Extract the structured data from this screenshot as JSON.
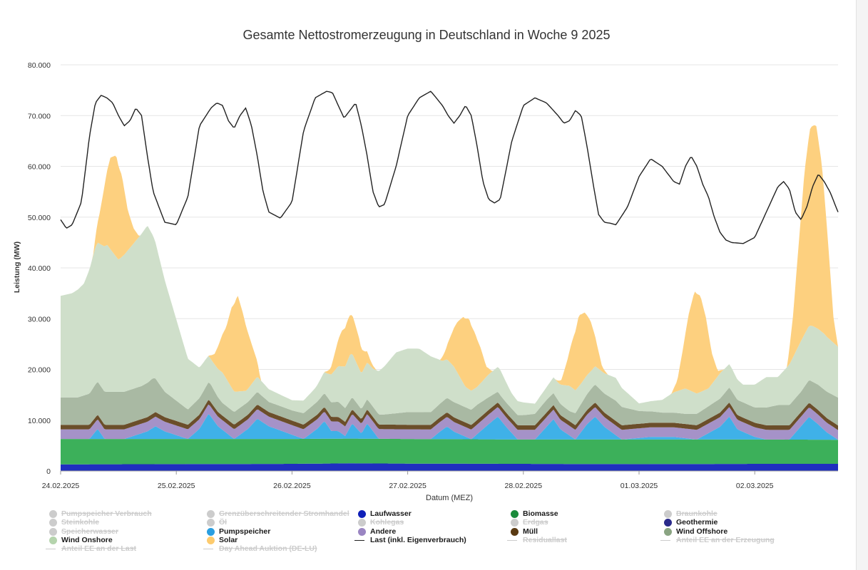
{
  "chart_data": {
    "type": "area",
    "title": "Gesamte Nettostromerzeugung in Deutschland in Woche 9 2025",
    "xlabel": "Datum (MEZ)",
    "ylabel": "Leistung (MW)",
    "ylim": [
      0,
      80000
    ],
    "yticks": [
      0,
      10000,
      20000,
      30000,
      40000,
      50000,
      60000,
      70000,
      80000
    ],
    "ytick_labels": [
      "0",
      "10.000",
      "20.000",
      "30.000",
      "40.000",
      "50.000",
      "60.000",
      "70.000",
      "80.000"
    ],
    "xlim_days": [
      0,
      6.72
    ],
    "xtick_labels": [
      "24.02.2025",
      "25.02.2025",
      "26.02.2025",
      "27.02.2025",
      "28.02.2025",
      "01.03.2025",
      "02.03.2025"
    ],
    "grid": true,
    "legend_position": "bottom",
    "series_order": [
      "Laufwasser",
      "Biomasse",
      "Pumpspeicher",
      "Andere",
      "Müll",
      "Wind Offshore",
      "Wind Onshore",
      "Solar"
    ],
    "series": [
      {
        "name": "Laufwasser",
        "color": "#1f2fbf",
        "type": "area",
        "x": [
          0,
          1,
          2,
          2.5,
          3,
          4,
          5,
          6,
          6.72
        ],
        "y": [
          1300,
          1350,
          1400,
          1500,
          1450,
          1400,
          1350,
          1400,
          1400
        ]
      },
      {
        "name": "Biomasse",
        "color": "#3cb05a",
        "type": "area",
        "x": [
          0,
          1,
          2,
          3,
          4,
          5,
          6,
          6.72
        ],
        "y": [
          5000,
          4950,
          4900,
          4850,
          4800,
          4850,
          4800,
          4750
        ]
      },
      {
        "name": "Pumpspeicher",
        "color": "#3fb1e8",
        "type": "area",
        "x": [
          0,
          0.25,
          0.32,
          0.38,
          0.55,
          0.75,
          0.82,
          0.9,
          1.1,
          1.2,
          1.28,
          1.36,
          1.5,
          1.62,
          1.7,
          1.8,
          2.1,
          2.22,
          2.28,
          2.34,
          2.4,
          2.46,
          2.52,
          2.6,
          2.65,
          2.75,
          3.2,
          3.28,
          3.34,
          3.4,
          3.55,
          3.7,
          3.78,
          3.85,
          3.95,
          4.1,
          4.2,
          4.26,
          4.32,
          4.45,
          4.55,
          4.62,
          4.7,
          4.85,
          5.1,
          5.3,
          5.5,
          5.7,
          5.78,
          5.85,
          6.0,
          6.1,
          6.3,
          6.47,
          6.55,
          6.62,
          6.72
        ],
        "y": [
          0,
          0,
          2000,
          0,
          0,
          1500,
          2500,
          1500,
          0,
          2000,
          5000,
          2500,
          0,
          2000,
          4000,
          2500,
          0,
          2000,
          3500,
          1500,
          1500,
          500,
          3000,
          1000,
          3000,
          0,
          0,
          1500,
          2500,
          1500,
          0,
          3000,
          4500,
          2500,
          0,
          0,
          2500,
          4000,
          2000,
          0,
          3000,
          4500,
          2500,
          0,
          500,
          500,
          0,
          2500,
          4500,
          2000,
          500,
          0,
          0,
          4500,
          3000,
          1500,
          0
        ]
      },
      {
        "name": "Andere",
        "color": "#a592c8",
        "type": "area",
        "x": [
          0,
          1,
          2,
          3,
          4,
          5,
          6,
          6.72
        ],
        "y": [
          1900,
          1900,
          1900,
          1900,
          1900,
          1900,
          1900,
          1900
        ]
      },
      {
        "name": "Müll",
        "color": "#6b4e2a",
        "type": "area",
        "x": [
          0,
          1,
          2,
          3,
          4,
          5,
          6,
          6.72
        ],
        "y": [
          900,
          900,
          900,
          900,
          900,
          900,
          900,
          900
        ]
      },
      {
        "name": "Wind Offshore",
        "color": "#a9b9a3",
        "type": "area",
        "x": [
          0,
          0.15,
          0.3,
          0.5,
          0.7,
          0.8,
          0.9,
          1.0,
          1.1,
          1.3,
          1.4,
          1.5,
          1.7,
          1.8,
          2.0,
          2.2,
          2.4,
          2.6,
          2.8,
          3.0,
          3.2,
          3.4,
          3.6,
          3.8,
          4.0,
          4.2,
          4.4,
          4.6,
          4.8,
          5.0,
          5.2,
          5.4,
          5.6,
          5.8,
          6.0,
          6.2,
          6.4,
          6.55,
          6.72
        ],
        "y": [
          5400,
          5400,
          6500,
          6500,
          6500,
          7000,
          5000,
          4000,
          3000,
          3500,
          2500,
          2500,
          2500,
          2000,
          2000,
          2500,
          3000,
          2000,
          2000,
          2500,
          2500,
          3000,
          3000,
          2000,
          2000,
          2500,
          2000,
          3500,
          4000,
          2500,
          2000,
          2000,
          2500,
          3000,
          3000,
          4000,
          4000,
          5000,
          5500
        ]
      },
      {
        "name": "Wind Onshore",
        "color": "#cfdfca",
        "type": "area",
        "x": [
          0,
          0.1,
          0.2,
          0.3,
          0.4,
          0.5,
          0.6,
          0.75,
          0.85,
          1.0,
          1.1,
          1.2,
          1.3,
          1.4,
          1.5,
          1.6,
          1.7,
          1.8,
          2.0,
          2.2,
          2.3,
          2.4,
          2.5,
          2.6,
          2.7,
          2.8,
          2.9,
          3.0,
          3.1,
          3.2,
          3.3,
          3.4,
          3.5,
          3.6,
          3.7,
          3.8,
          3.9,
          4.0,
          4.1,
          4.2,
          4.3,
          4.4,
          4.5,
          4.6,
          4.7,
          4.8,
          4.9,
          5.0,
          5.1,
          5.2,
          5.3,
          5.4,
          5.5,
          5.6,
          5.7,
          5.8,
          5.9,
          6.0,
          6.1,
          6.2,
          6.3,
          6.4,
          6.5,
          6.6,
          6.72
        ],
        "y": [
          20000,
          20500,
          22000,
          27000,
          29000,
          26000,
          28000,
          31000,
          25000,
          16000,
          10000,
          6000,
          5000,
          6000,
          4000,
          2500,
          3000,
          2500,
          2000,
          3000,
          4500,
          7000,
          9000,
          7000,
          7500,
          9500,
          12000,
          12500,
          12500,
          11000,
          8000,
          7000,
          4000,
          3500,
          4500,
          5000,
          3000,
          2500,
          2000,
          2500,
          3500,
          5000,
          4000,
          3500,
          4000,
          4500,
          3000,
          1500,
          2000,
          2500,
          4000,
          5000,
          4000,
          3500,
          5000,
          4500,
          3500,
          4500,
          6000,
          5500,
          8000,
          10000,
          11000,
          11000,
          10000
        ]
      },
      {
        "name": "Solar",
        "color": "#fdd07f",
        "type": "area",
        "x": [
          0,
          0.28,
          0.33,
          0.38,
          0.43,
          0.48,
          0.53,
          0.58,
          0.63,
          0.68,
          0.73,
          1.28,
          1.33,
          1.38,
          1.43,
          1.48,
          1.53,
          1.58,
          1.63,
          1.68,
          1.73,
          2.28,
          2.33,
          2.38,
          2.43,
          2.48,
          2.53,
          2.58,
          2.63,
          2.68,
          2.73,
          3.28,
          3.33,
          3.38,
          3.43,
          3.48,
          3.53,
          3.58,
          3.63,
          3.68,
          3.73,
          4.28,
          4.33,
          4.38,
          4.43,
          4.48,
          4.53,
          4.58,
          4.63,
          4.68,
          4.73,
          5.28,
          5.33,
          5.38,
          5.43,
          5.48,
          5.53,
          5.58,
          5.63,
          5.68,
          5.73,
          6.28,
          6.33,
          6.38,
          6.43,
          6.48,
          6.53,
          6.58,
          6.63,
          6.68,
          6.72
        ],
        "y": [
          0,
          0,
          5000,
          12000,
          18000,
          20000,
          16000,
          8000,
          3000,
          0,
          0,
          0,
          2000,
          6000,
          10000,
          16000,
          19000,
          15000,
          10000,
          5000,
          0,
          0,
          1000,
          4000,
          7000,
          8000,
          7500,
          6000,
          3000,
          1000,
          0,
          0,
          2000,
          6000,
          10000,
          13000,
          14000,
          11000,
          7000,
          2000,
          0,
          0,
          1000,
          5000,
          10000,
          14000,
          13000,
          10000,
          5000,
          1000,
          0,
          0,
          2000,
          8000,
          15000,
          20000,
          19000,
          14000,
          6000,
          1000,
          0,
          0,
          8000,
          20000,
          32000,
          39000,
          40000,
          33000,
          20000,
          5000,
          0
        ]
      },
      {
        "name": "Last (inkl. Eigenverbrauch)",
        "color": "#222222",
        "type": "line",
        "x": [
          0,
          0.05,
          0.1,
          0.18,
          0.25,
          0.3,
          0.35,
          0.4,
          0.45,
          0.5,
          0.55,
          0.6,
          0.65,
          0.7,
          0.75,
          0.8,
          0.9,
          1.0,
          1.1,
          1.2,
          1.3,
          1.35,
          1.4,
          1.45,
          1.5,
          1.55,
          1.6,
          1.65,
          1.7,
          1.75,
          1.8,
          1.9,
          2.0,
          2.1,
          2.2,
          2.3,
          2.35,
          2.4,
          2.45,
          2.5,
          2.55,
          2.6,
          2.65,
          2.7,
          2.75,
          2.8,
          2.9,
          3.0,
          3.1,
          3.2,
          3.3,
          3.35,
          3.4,
          3.45,
          3.5,
          3.55,
          3.6,
          3.65,
          3.7,
          3.75,
          3.8,
          3.9,
          4.0,
          4.1,
          4.2,
          4.3,
          4.35,
          4.4,
          4.45,
          4.5,
          4.55,
          4.6,
          4.65,
          4.7,
          4.75,
          4.8,
          4.9,
          5.0,
          5.1,
          5.2,
          5.3,
          5.35,
          5.4,
          5.45,
          5.5,
          5.55,
          5.6,
          5.65,
          5.7,
          5.75,
          5.8,
          5.9,
          6.0,
          6.1,
          6.2,
          6.25,
          6.3,
          6.35,
          6.4,
          6.45,
          6.5,
          6.55,
          6.6,
          6.65,
          6.72
        ],
        "y": [
          49500,
          47800,
          48500,
          53000,
          66000,
          72500,
          74000,
          73500,
          72500,
          70000,
          68000,
          69000,
          71500,
          70000,
          62000,
          55000,
          49000,
          48500,
          54000,
          68000,
          71500,
          72500,
          72000,
          69000,
          67500,
          70000,
          71500,
          68000,
          62000,
          55000,
          51000,
          49800,
          53000,
          67000,
          73500,
          74800,
          74500,
          72000,
          69500,
          71000,
          72500,
          68000,
          62000,
          55000,
          52000,
          52500,
          60000,
          70000,
          73500,
          74800,
          72000,
          70000,
          68500,
          70000,
          72000,
          70000,
          64000,
          57000,
          53500,
          52800,
          53500,
          65000,
          72000,
          73500,
          72500,
          70000,
          68500,
          69000,
          71000,
          70000,
          64000,
          57000,
          50500,
          49000,
          48800,
          48500,
          52000,
          58000,
          61500,
          60000,
          57000,
          56500,
          60000,
          62000,
          60000,
          56500,
          54000,
          50000,
          47000,
          45500,
          45000,
          44800,
          46000,
          51000,
          56000,
          57000,
          55500,
          51000,
          49500,
          52000,
          56000,
          58500,
          57000,
          55000,
          51000
        ]
      }
    ],
    "legend": [
      {
        "name": "Pumpspeicher Verbrauch",
        "color": "#cccccc",
        "symbol": "dot",
        "visible": false
      },
      {
        "name": "Grenzüberschreitender Stromhandel",
        "color": "#cccccc",
        "symbol": "dot",
        "visible": false
      },
      {
        "name": "Laufwasser",
        "color": "#0f1fb8",
        "symbol": "dot",
        "visible": true
      },
      {
        "name": "Biomasse",
        "color": "#1a8a3a",
        "symbol": "dot",
        "visible": true
      },
      {
        "name": "Braunkohle",
        "color": "#cccccc",
        "symbol": "dot",
        "visible": false
      },
      {
        "name": "Steinkohle",
        "color": "#cccccc",
        "symbol": "dot",
        "visible": false
      },
      {
        "name": "Öl",
        "color": "#cccccc",
        "symbol": "dot",
        "visible": false
      },
      {
        "name": "Kohlegas",
        "color": "#cccccc",
        "symbol": "dot",
        "visible": false
      },
      {
        "name": "Erdgas",
        "color": "#cccccc",
        "symbol": "dot",
        "visible": false
      },
      {
        "name": "Geothermie",
        "color": "#2a2a8a",
        "symbol": "dot",
        "visible": true
      },
      {
        "name": "Speicherwasser",
        "color": "#cccccc",
        "symbol": "dot",
        "visible": false
      },
      {
        "name": "Pumpspeicher",
        "color": "#2a9ee0",
        "symbol": "dot",
        "visible": true
      },
      {
        "name": "Andere",
        "color": "#9a85c2",
        "symbol": "dot",
        "visible": true
      },
      {
        "name": "Müll",
        "color": "#5a3a12",
        "symbol": "dot",
        "visible": true
      },
      {
        "name": "Wind Offshore",
        "color": "#8aa482",
        "symbol": "dot",
        "visible": true
      },
      {
        "name": "Wind Onshore",
        "color": "#b5d4ad",
        "symbol": "dot",
        "visible": true
      },
      {
        "name": "Solar",
        "color": "#fdcb6e",
        "symbol": "dot",
        "visible": true
      },
      {
        "name": "Last (inkl. Eigenverbrauch)",
        "color": "#222222",
        "symbol": "line",
        "visible": true
      },
      {
        "name": "Residuallast",
        "color": "#cccccc",
        "symbol": "line",
        "visible": false
      },
      {
        "name": "Anteil EE an der Erzeugung",
        "color": "#cccccc",
        "symbol": "line",
        "visible": false
      },
      {
        "name": "Anteil EE an der Last",
        "color": "#cccccc",
        "symbol": "line",
        "visible": false
      },
      {
        "name": "Day Ahead Auktion (DE-LU)",
        "color": "#cccccc",
        "symbol": "line",
        "visible": false
      }
    ]
  }
}
